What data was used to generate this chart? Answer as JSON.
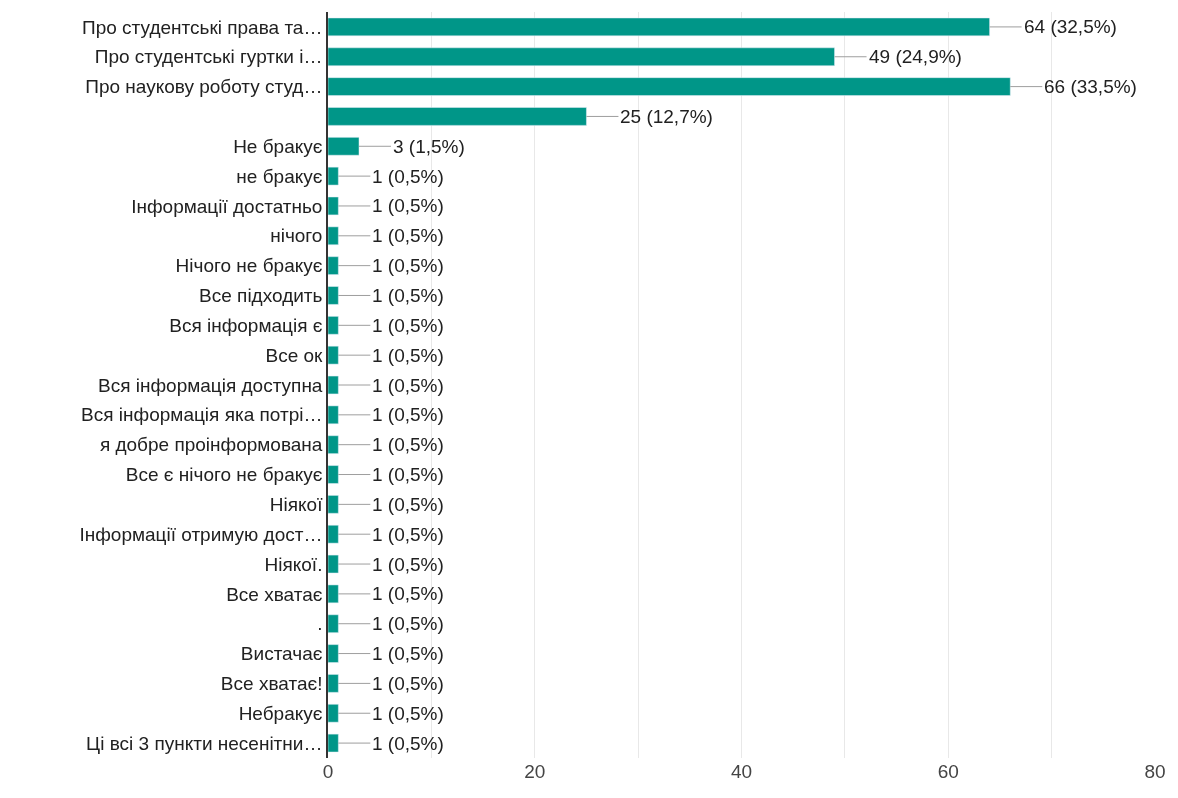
{
  "chart_data": {
    "type": "bar",
    "orientation": "horizontal",
    "color": "#009688",
    "categories": [
      "Про студентські права та…",
      "Про студентські гуртки і…",
      "Про наукову роботу студ…",
      null,
      "Не бракує",
      "не бракує",
      "Інформації достатньо",
      "нічого",
      "Нічого не бракує",
      "Все підходить",
      "Вся інформація є",
      "Все ок",
      "Вся інформація доступна",
      "Вся інформація яка потрі…",
      "я добре проінформована",
      "Все є нічого не бракує",
      "Ніякої",
      "Інформації отримую дост…",
      "Ніякої.",
      "Все хватає",
      ".",
      "Вистачає",
      "Все хватає!",
      "Небракує",
      "Ці всі 3 пункти несенітни…"
    ],
    "values": [
      64,
      49,
      66,
      25,
      3,
      1,
      1,
      1,
      1,
      1,
      1,
      1,
      1,
      1,
      1,
      1,
      1,
      1,
      1,
      1,
      1,
      1,
      1,
      1,
      1
    ],
    "value_labels": [
      "64 (32,5%)",
      "49 (24,9%)",
      "66 (33,5%)",
      "25 (12,7%)",
      "3 (1,5%)",
      "1 (0,5%)",
      "1 (0,5%)",
      "1 (0,5%)",
      "1 (0,5%)",
      "1 (0,5%)",
      "1 (0,5%)",
      "1 (0,5%)",
      "1 (0,5%)",
      "1 (0,5%)",
      "1 (0,5%)",
      "1 (0,5%)",
      "1 (0,5%)",
      "1 (0,5%)",
      "1 (0,5%)",
      "1 (0,5%)",
      "1 (0,5%)",
      "1 (0,5%)",
      "1 (0,5%)",
      "1 (0,5%)",
      "1 (0,5%)"
    ],
    "xlim": [
      0,
      80
    ],
    "xticks": [
      0,
      {
        "value": 10,
        "label": null
      },
      20,
      {
        "value": 30,
        "label": null
      },
      40,
      {
        "value": 50,
        "label": null
      },
      60,
      {
        "value": 70,
        "label": null
      },
      80
    ],
    "grid": "x"
  }
}
